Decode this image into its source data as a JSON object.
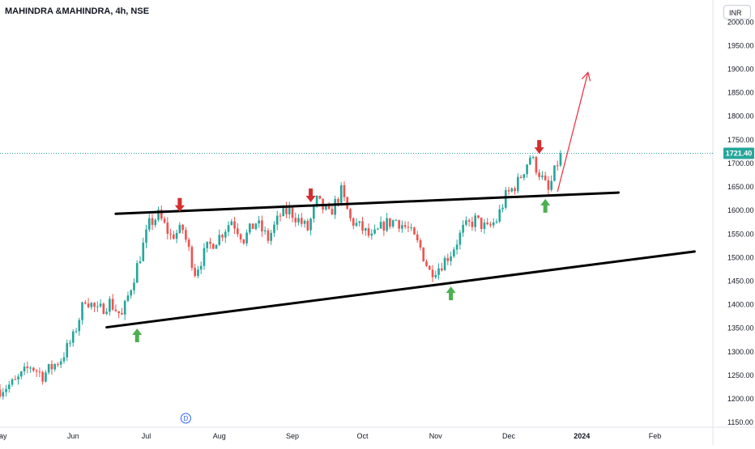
{
  "header": {
    "symbol": "MAHINDRA &MAHINDRA, 4h, NSE",
    "currency_button": "INR"
  },
  "colors": {
    "up_candle": "#26a69a",
    "down_candle": "#ef5350",
    "trendline": "#000000",
    "projection_arrow": "#f23645",
    "up_arrow": "#4caf50",
    "down_arrow": "#d32f2f",
    "price_label_bg": "#26a69a"
  },
  "chart_data": {
    "type": "candlestick",
    "title": "MAHINDRA &MAHINDRA, 4h, NSE",
    "ylim": [
      1140,
      2040
    ],
    "y_ticks": [
      "2000.00",
      "1950.00",
      "1900.00",
      "1850.00",
      "1800.00",
      "1750.00",
      "1700.00",
      "1650.00",
      "1600.00",
      "1550.00",
      "1500.00",
      "1450.00",
      "1400.00",
      "1350.00",
      "1300.00",
      "1250.00",
      "1200.00",
      "1150.00"
    ],
    "x_ticks": [
      "May",
      "Jun",
      "Jul",
      "Aug",
      "Sep",
      "Oct",
      "Nov",
      "Dec",
      "2024",
      "Feb"
    ],
    "x_tick_index": [
      0,
      24,
      48,
      72,
      96,
      119,
      143,
      167,
      191,
      215
    ],
    "last_price": "1721.40",
    "price_path": [
      [
        0,
        1220
      ],
      [
        5,
        1235
      ],
      [
        10,
        1270
      ],
      [
        14,
        1250
      ],
      [
        20,
        1285
      ],
      [
        24,
        1330
      ],
      [
        28,
        1415
      ],
      [
        32,
        1385
      ],
      [
        36,
        1405
      ],
      [
        40,
        1375
      ],
      [
        44,
        1460
      ],
      [
        49,
        1570
      ],
      [
        52,
        1590
      ],
      [
        56,
        1545
      ],
      [
        60,
        1560
      ],
      [
        64,
        1470
      ],
      [
        68,
        1520
      ],
      [
        72,
        1545
      ],
      [
        76,
        1580
      ],
      [
        80,
        1540
      ],
      [
        84,
        1575
      ],
      [
        88,
        1540
      ],
      [
        92,
        1590
      ],
      [
        95,
        1600
      ],
      [
        98,
        1580
      ],
      [
        101,
        1560
      ],
      [
        104,
        1620
      ],
      [
        108,
        1590
      ],
      [
        112,
        1640
      ],
      [
        115,
        1580
      ],
      [
        119,
        1560
      ],
      [
        122,
        1540
      ],
      [
        126,
        1570
      ],
      [
        130,
        1580
      ],
      [
        134,
        1560
      ],
      [
        138,
        1520
      ],
      [
        141,
        1470
      ],
      [
        144,
        1480
      ],
      [
        148,
        1510
      ],
      [
        152,
        1560
      ],
      [
        156,
        1580
      ],
      [
        160,
        1560
      ],
      [
        163,
        1580
      ],
      [
        166,
        1630
      ],
      [
        170,
        1660
      ],
      [
        174,
        1715
      ],
      [
        177,
        1680
      ],
      [
        180,
        1640
      ],
      [
        184,
        1721.4
      ]
    ],
    "annotations": {
      "upper_trendline": {
        "from": [
          38,
          1593
        ],
        "to": [
          203,
          1638
        ]
      },
      "lower_trendline": {
        "from": [
          35,
          1352
        ],
        "to": [
          228,
          1513
        ]
      },
      "projection_arrow": {
        "from": [
          183,
          1640
        ],
        "to": [
          193,
          1893
        ]
      },
      "down_arrows": [
        [
          59,
          1612
        ],
        [
          102,
          1632
        ],
        [
          177,
          1735
        ]
      ],
      "up_arrows": [
        [
          45,
          1335
        ],
        [
          148,
          1424
        ],
        [
          179,
          1610
        ]
      ]
    }
  }
}
